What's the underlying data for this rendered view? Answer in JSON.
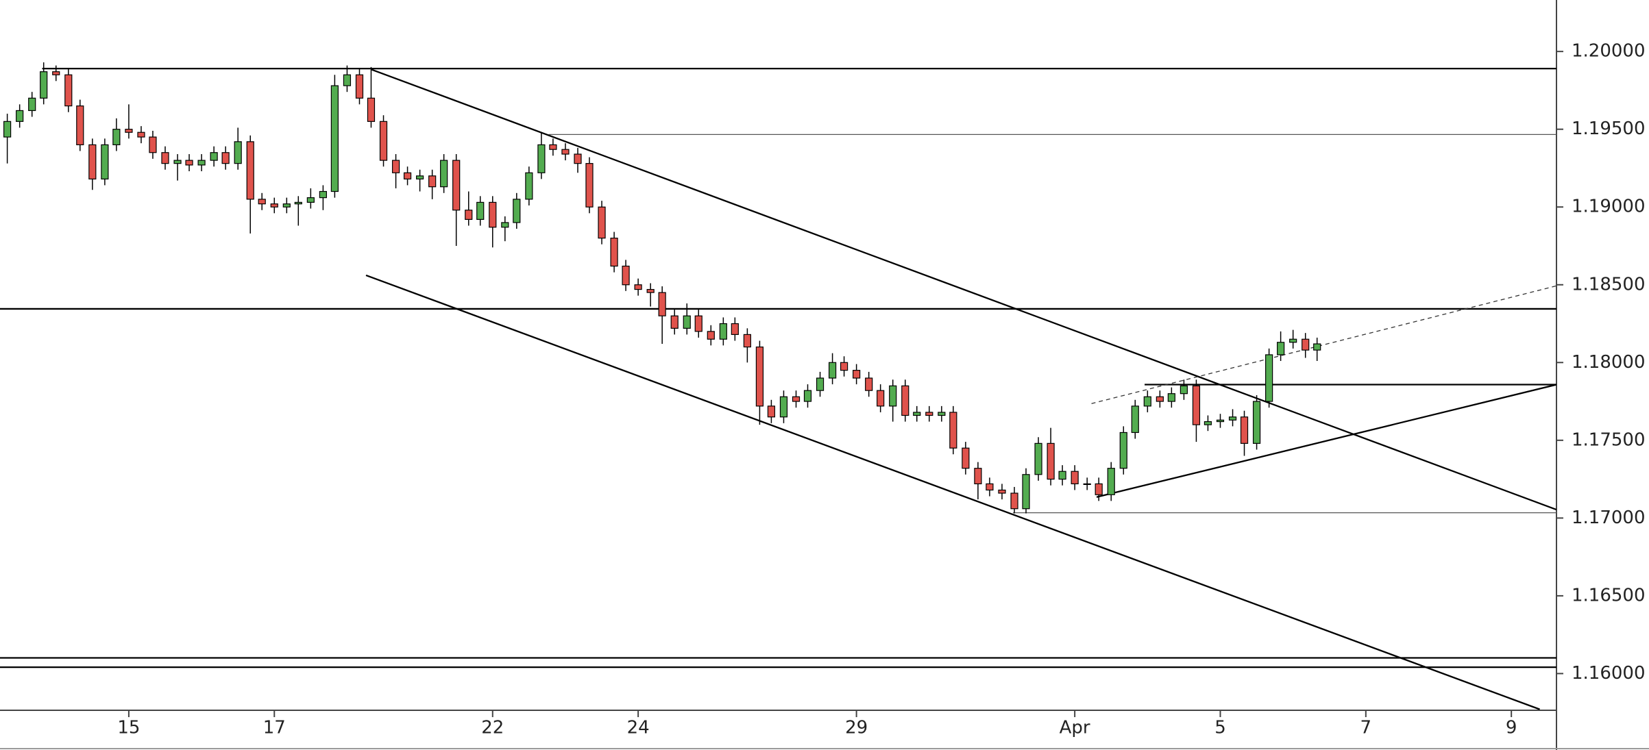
{
  "chart_data": {
    "type": "candlestick",
    "up_color": "#53ac50",
    "down_color": "#e0534c",
    "xlim": [
      0.23,
      21.62
    ],
    "ylim": [
      1.15764,
      1.20331
    ],
    "xticks": [
      {
        "value": 2,
        "label": "15"
      },
      {
        "value": 4,
        "label": "17"
      },
      {
        "value": 7,
        "label": "22"
      },
      {
        "value": 9,
        "label": "24"
      },
      {
        "value": 12,
        "label": "29"
      },
      {
        "value": 15,
        "label": "Apr"
      },
      {
        "value": 17,
        "label": "5"
      },
      {
        "value": 19,
        "label": "7"
      },
      {
        "value": 21,
        "label": "9"
      }
    ],
    "yticks": [
      {
        "value": 1.16,
        "label": "1.16000"
      },
      {
        "value": 1.165,
        "label": "1.16500"
      },
      {
        "value": 1.17,
        "label": "1.17000"
      },
      {
        "value": 1.175,
        "label": "1.17500"
      },
      {
        "value": 1.18,
        "label": "1.18000"
      },
      {
        "value": 1.185,
        "label": "1.18500"
      },
      {
        "value": 1.19,
        "label": "1.19000"
      },
      {
        "value": 1.195,
        "label": "1.19500"
      },
      {
        "value": 1.2,
        "label": "1.20000"
      }
    ],
    "x": [
      0.33,
      0.5,
      0.67,
      0.83,
      1,
      1.17,
      1.33,
      1.5,
      1.67,
      1.83,
      2,
      2.17,
      2.33,
      2.5,
      2.67,
      2.83,
      3,
      3.17,
      3.33,
      3.5,
      3.67,
      3.83,
      4,
      4.17,
      4.33,
      4.5,
      4.67,
      4.83,
      5,
      5.17,
      5.33,
      5.5,
      5.67,
      5.83,
      6,
      6.17,
      6.33,
      6.5,
      6.67,
      6.83,
      7,
      7.17,
      7.33,
      7.5,
      7.67,
      7.83,
      8,
      8.17,
      8.33,
      8.5,
      8.67,
      8.83,
      9,
      9.17,
      9.33,
      9.5,
      9.67,
      9.83,
      10,
      10.17,
      10.33,
      10.5,
      10.67,
      10.83,
      11,
      11.17,
      11.33,
      11.5,
      11.67,
      11.83,
      12,
      12.17,
      12.33,
      12.5,
      12.67,
      12.83,
      13,
      13.17,
      13.33,
      13.5,
      13.67,
      13.83,
      14,
      14.17,
      14.33,
      14.5,
      14.67,
      14.83,
      15,
      15.17,
      15.33,
      15.5,
      15.67,
      15.83,
      16,
      16.17,
      16.33,
      16.5,
      16.67,
      16.83,
      17,
      17.17,
      17.33,
      17.5,
      17.67,
      17.83,
      18,
      18.17,
      18.33
    ],
    "open": [
      1.1945,
      1.1955,
      1.1962,
      1.197,
      1.1987,
      1.1985,
      1.1965,
      1.194,
      1.1918,
      1.194,
      1.195,
      1.1948,
      1.1945,
      1.1935,
      1.1928,
      1.193,
      1.1927,
      1.193,
      1.1935,
      1.1928,
      1.1942,
      1.1905,
      1.1902,
      1.19,
      1.1902,
      1.1903,
      1.1906,
      1.191,
      1.1978,
      1.1985,
      1.197,
      1.1955,
      1.193,
      1.1922,
      1.1918,
      1.192,
      1.1913,
      1.193,
      1.1898,
      1.1892,
      1.1903,
      1.1887,
      1.189,
      1.1905,
      1.1922,
      1.194,
      1.1937,
      1.1934,
      1.1928,
      1.19,
      1.188,
      1.1862,
      1.185,
      1.1847,
      1.1845,
      1.183,
      1.1822,
      1.183,
      1.182,
      1.1815,
      1.1825,
      1.1818,
      1.181,
      1.1772,
      1.1765,
      1.1778,
      1.1775,
      1.1782,
      1.179,
      1.18,
      1.1795,
      1.179,
      1.1782,
      1.1772,
      1.1785,
      1.1766,
      1.1768,
      1.1766,
      1.1768,
      1.1745,
      1.1732,
      1.1722,
      1.1718,
      1.1716,
      1.1706,
      1.1728,
      1.1748,
      1.1725,
      1.173,
      1.1722,
      1.1722,
      1.1715,
      1.1732,
      1.1755,
      1.1772,
      1.1778,
      1.1775,
      1.178,
      1.1785,
      1.176,
      1.1762,
      1.1763,
      1.1765,
      1.1748,
      1.1775,
      1.1805,
      1.1813,
      1.1815,
      1.1808
    ],
    "high": [
      1.196,
      1.1966,
      1.1974,
      1.1993,
      1.1991,
      1.1989,
      1.1969,
      1.1944,
      1.1944,
      1.1957,
      1.1966,
      1.1952,
      1.1949,
      1.1939,
      1.1934,
      1.1934,
      1.1934,
      1.1939,
      1.1939,
      1.1951,
      1.1946,
      1.1909,
      1.1906,
      1.1906,
      1.1907,
      1.1912,
      1.1914,
      1.1985,
      1.1991,
      1.1989,
      1.199,
      1.1959,
      1.1934,
      1.1926,
      1.1924,
      1.1924,
      1.1934,
      1.1934,
      1.191,
      1.1907,
      1.1907,
      1.1894,
      1.1909,
      1.1926,
      1.1948,
      1.1944,
      1.1941,
      1.1938,
      1.1932,
      1.1904,
      1.1884,
      1.1866,
      1.1854,
      1.1851,
      1.1849,
      1.1834,
      1.1838,
      1.1834,
      1.1824,
      1.1829,
      1.1829,
      1.1822,
      1.1814,
      1.1776,
      1.1782,
      1.1782,
      1.1786,
      1.1794,
      1.1806,
      1.1804,
      1.1799,
      1.1794,
      1.1786,
      1.1789,
      1.1789,
      1.1772,
      1.1772,
      1.1772,
      1.1772,
      1.1749,
      1.1736,
      1.1726,
      1.1722,
      1.172,
      1.1732,
      1.1752,
      1.1758,
      1.1734,
      1.1734,
      1.1726,
      1.1726,
      1.1736,
      1.1759,
      1.1776,
      1.1782,
      1.1782,
      1.1784,
      1.1789,
      1.1789,
      1.1766,
      1.1767,
      1.177,
      1.1769,
      1.1779,
      1.1809,
      1.182,
      1.1821,
      1.1819,
      1.1816
    ],
    "low": [
      1.1928,
      1.1951,
      1.1958,
      1.1966,
      1.1981,
      1.1961,
      1.1936,
      1.1911,
      1.1914,
      1.1936,
      1.1944,
      1.1941,
      1.1931,
      1.1924,
      1.1917,
      1.1923,
      1.1923,
      1.1926,
      1.1924,
      1.1924,
      1.1883,
      1.1898,
      1.1896,
      1.1896,
      1.1888,
      1.1899,
      1.1898,
      1.1906,
      1.1974,
      1.1966,
      1.1951,
      1.1926,
      1.1912,
      1.1914,
      1.191,
      1.1905,
      1.1909,
      1.1875,
      1.1888,
      1.1888,
      1.1874,
      1.1878,
      1.1886,
      1.1901,
      1.1918,
      1.1933,
      1.193,
      1.1922,
      1.1896,
      1.1876,
      1.1858,
      1.1846,
      1.1843,
      1.1836,
      1.1812,
      1.1818,
      1.1818,
      1.1816,
      1.1811,
      1.1811,
      1.1814,
      1.18,
      1.176,
      1.1761,
      1.1761,
      1.1771,
      1.1771,
      1.1778,
      1.1786,
      1.1791,
      1.1786,
      1.1778,
      1.1768,
      1.1762,
      1.1762,
      1.1762,
      1.1762,
      1.1762,
      1.1741,
      1.1728,
      1.1712,
      1.1714,
      1.1712,
      1.1703,
      1.1703,
      1.1724,
      1.1721,
      1.1721,
      1.1718,
      1.1718,
      1.1711,
      1.1711,
      1.1728,
      1.1751,
      1.1768,
      1.1771,
      1.1771,
      1.1776,
      1.1749,
      1.1756,
      1.1758,
      1.1759,
      1.174,
      1.1744,
      1.1771,
      1.1801,
      1.1809,
      1.1803,
      1.1801
    ],
    "close": [
      1.1955,
      1.1962,
      1.197,
      1.1987,
      1.1985,
      1.1965,
      1.194,
      1.1918,
      1.194,
      1.195,
      1.1948,
      1.1945,
      1.1935,
      1.1928,
      1.193,
      1.1927,
      1.193,
      1.1935,
      1.1928,
      1.1942,
      1.1905,
      1.1902,
      1.19,
      1.1902,
      1.1903,
      1.1906,
      1.191,
      1.1978,
      1.1985,
      1.197,
      1.1955,
      1.193,
      1.1922,
      1.1918,
      1.192,
      1.1913,
      1.193,
      1.1898,
      1.1892,
      1.1903,
      1.1887,
      1.189,
      1.1905,
      1.1922,
      1.194,
      1.1937,
      1.1934,
      1.1928,
      1.19,
      1.188,
      1.1862,
      1.185,
      1.1847,
      1.1845,
      1.183,
      1.1822,
      1.183,
      1.182,
      1.1815,
      1.1825,
      1.1818,
      1.181,
      1.1772,
      1.1765,
      1.1778,
      1.1775,
      1.1782,
      1.179,
      1.18,
      1.1795,
      1.179,
      1.1782,
      1.1772,
      1.1785,
      1.1766,
      1.1768,
      1.1766,
      1.1768,
      1.1745,
      1.1732,
      1.1722,
      1.1718,
      1.1716,
      1.1706,
      1.1728,
      1.1748,
      1.1725,
      1.173,
      1.1722,
      1.1722,
      1.1715,
      1.1732,
      1.1755,
      1.1772,
      1.1778,
      1.1775,
      1.178,
      1.1785,
      1.176,
      1.1762,
      1.1763,
      1.1765,
      1.1748,
      1.1775,
      1.1805,
      1.1813,
      1.1815,
      1.1808,
      1.1812
    ],
    "drawings": [
      {
        "x": [
          0.81,
          21.62
        ],
        "y": [
          1.1989,
          1.1989
        ],
        "style": "solid"
      },
      {
        "x": [
          7.77,
          21.62
        ],
        "y": [
          1.19466,
          1.19466
        ],
        "style": "thin"
      },
      {
        "x": [
          0.23,
          21.62
        ],
        "y": [
          1.18345,
          1.18345
        ],
        "style": "solid"
      },
      {
        "x": [
          15.96,
          21.62
        ],
        "y": [
          1.17858,
          1.17858
        ],
        "style": "solid"
      },
      {
        "x": [
          14.15,
          21.62
        ],
        "y": [
          1.17034,
          1.17034
        ],
        "style": "thin"
      },
      {
        "x": [
          0.23,
          21.62
        ],
        "y": [
          1.16101,
          1.16101
        ],
        "style": "solid"
      },
      {
        "x": [
          0.23,
          21.62
        ],
        "y": [
          1.16041,
          1.16041
        ],
        "style": "solid"
      },
      {
        "x": [
          5.33,
          21.62
        ],
        "y": [
          1.19885,
          1.17054
        ],
        "style": "solid"
      },
      {
        "x": [
          5.26,
          21.39
        ],
        "y": [
          1.18561,
          1.1577
        ],
        "style": "solid"
      },
      {
        "x": [
          15.3,
          21.62
        ],
        "y": [
          1.17135,
          1.17858
        ],
        "style": "solid"
      },
      {
        "x": [
          15.23,
          21.62
        ],
        "y": [
          1.17736,
          1.18493
        ],
        "style": "dashed"
      }
    ]
  }
}
